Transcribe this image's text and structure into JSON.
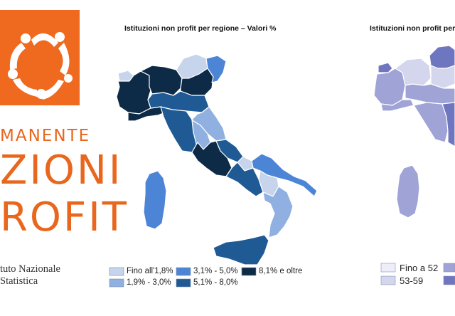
{
  "logo": {
    "line1": "MANENTE",
    "line2": "ZIONI",
    "line3": "ROFIT",
    "istat_line1": "tuto Nazionale",
    "istat_line2": "Statistica"
  },
  "maps": [
    {
      "title": "Istituzioni non profit per regione – Valori %",
      "legend": [
        {
          "label": "Fino all'1,8%",
          "color": "#c6d4ec"
        },
        {
          "label": "1,9% - 3,0%",
          "color": "#8fb0e0"
        },
        {
          "label": "3,1% - 5,0%",
          "color": "#4d85d6"
        },
        {
          "label": "5,1% - 8,0%",
          "color": "#1f5a95"
        },
        {
          "label": "8,1% e oltre",
          "color": "#0d2b46"
        }
      ]
    },
    {
      "title": "Istituzioni non profit per re",
      "legend": [
        {
          "label": "Fino a 52",
          "color": "#eceef8"
        },
        {
          "label": "53-59",
          "color": "#d3d6ec"
        },
        {
          "label": "",
          "color": "#9fa3d6"
        },
        {
          "label": "",
          "color": "#6f76c0"
        }
      ]
    }
  ]
}
